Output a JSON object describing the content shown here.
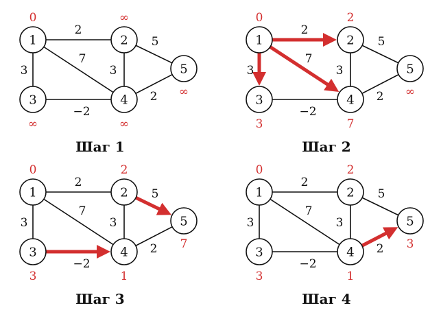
{
  "colors": {
    "highlight": "#d32f2f",
    "ink": "#111111"
  },
  "nodes": [
    "1",
    "2",
    "3",
    "4",
    "5"
  ],
  "edges": [
    {
      "id": "e12",
      "from": "1",
      "to": "2",
      "weight": "2"
    },
    {
      "id": "e13",
      "from": "1",
      "to": "3",
      "weight": "3"
    },
    {
      "id": "e14",
      "from": "1",
      "to": "4",
      "weight": "7"
    },
    {
      "id": "e24",
      "from": "2",
      "to": "4",
      "weight": "3"
    },
    {
      "id": "e25",
      "from": "2",
      "to": "5",
      "weight": "5"
    },
    {
      "id": "e34",
      "from": "3",
      "to": "4",
      "weight": "−2"
    },
    {
      "id": "e45",
      "from": "4",
      "to": "5",
      "weight": "2"
    }
  ],
  "steps": [
    {
      "title": "Шаг 1",
      "distances": {
        "1": "0",
        "2": "∞",
        "3": "∞",
        "4": "∞",
        "5": "∞"
      },
      "highlighted": []
    },
    {
      "title": "Шаг 2",
      "distances": {
        "1": "0",
        "2": "2",
        "3": "3",
        "4": "7",
        "5": "∞"
      },
      "highlighted": [
        "e12",
        "e13",
        "e14"
      ]
    },
    {
      "title": "Шаг 3",
      "distances": {
        "1": "0",
        "2": "2",
        "3": "3",
        "4": "1",
        "5": "7"
      },
      "highlighted": [
        "e25",
        "e34"
      ]
    },
    {
      "title": "Шаг 4",
      "distances": {
        "1": "0",
        "2": "2",
        "3": "3",
        "4": "1",
        "5": "3"
      },
      "highlighted": [
        "e45"
      ]
    }
  ]
}
